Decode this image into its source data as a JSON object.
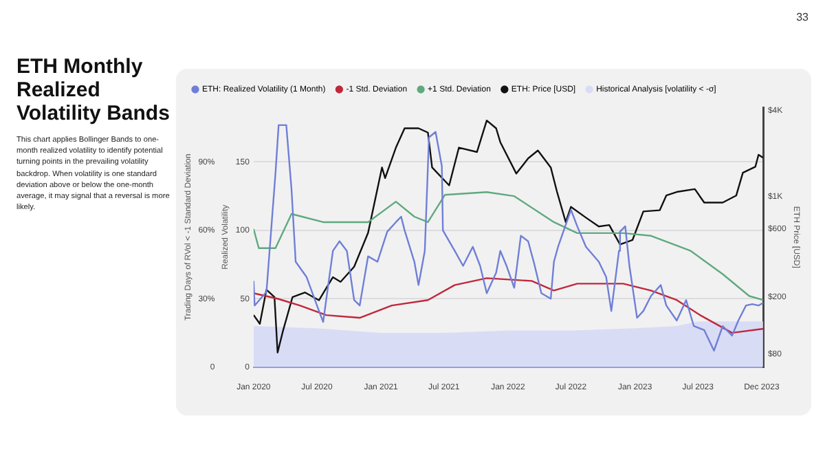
{
  "chart_data": {
    "type": "line",
    "title": "ETH Monthly Realized Volatility Bands",
    "subtitle": "This chart applies Bollinger Bands to one-month realized volatility to identify potential turning points in the prevailing volatility backdrop. When volatility is one standard deviation above or below the one-month average, it may signal that a reversal is more likely.",
    "annotations": [
      "33"
    ],
    "ylabel": "Realized Volatility",
    "y2label": "ETH Price [USD]",
    "y3label": "Trading Days of RVol < -1 Standard Deviation",
    "xlim": [
      "2020-01-01",
      "2024-01-06"
    ],
    "xticks": [
      {
        "value": "2020-01-01",
        "label": "Jan 2020"
      },
      {
        "value": "2020-07-01",
        "label": "Jul 2020"
      },
      {
        "value": "2021-01-01",
        "label": "Jan 2021"
      },
      {
        "value": "2021-07-01",
        "label": "Jul 2021"
      },
      {
        "value": "2022-01-01",
        "label": "Jan 2022"
      },
      {
        "value": "2022-07-01",
        "label": "Jul 2022"
      },
      {
        "value": "2023-01-01",
        "label": "Jan 2023"
      },
      {
        "value": "2023-07-01",
        "label": "Jul 2023"
      },
      {
        "value": "2023-12-31",
        "label": "Dec 2023"
      }
    ],
    "ylim": [
      0,
      190
    ],
    "yticks": [
      0,
      50,
      100,
      150
    ],
    "y3lim": [
      0,
      114
    ],
    "y3ticks": [
      0,
      {
        "value": 30,
        "label": "30%"
      },
      {
        "value": 60,
        "label": "60%"
      },
      {
        "value": 90,
        "label": "90%"
      }
    ],
    "y2lim": [
      65,
      4200
    ],
    "y2ticks": [
      {
        "value": 80,
        "label": "$80"
      },
      {
        "value": 200,
        "label": "$200"
      },
      {
        "value": 600,
        "label": "$600"
      },
      {
        "value": 1000,
        "label": "$1K"
      },
      {
        "value": 4000,
        "label": "$4K"
      }
    ],
    "log": "y2",
    "grid": "y",
    "legend": "top left",
    "marker": "none",
    "line_style": "solid",
    "series": [
      {
        "name": "ETH: Realized Volatility (1 Month)",
        "color": "#6f7fd6",
        "x": [
          "2020-01-01",
          "2020-01-04",
          "2020-02-07",
          "2020-03-04",
          "2020-03-13",
          "2020-04-04",
          "2020-04-19",
          "2020-05-01",
          "2020-06-01",
          "2020-07-07",
          "2020-07-19",
          "2020-08-16",
          "2020-09-04",
          "2020-09-25",
          "2020-10-16",
          "2020-11-01",
          "2020-11-25",
          "2020-12-22",
          "2021-01-19",
          "2021-02-13",
          "2021-02-28",
          "2021-03-10",
          "2021-04-07",
          "2021-04-19",
          "2021-05-07",
          "2021-05-19",
          "2021-06-07",
          "2021-06-25",
          "2021-06-28",
          "2021-08-01",
          "2021-08-25",
          "2021-09-22",
          "2021-10-13",
          "2021-11-01",
          "2021-11-28",
          "2021-12-10",
          "2021-12-28",
          "2022-01-19",
          "2022-02-07",
          "2022-02-28",
          "2022-03-16",
          "2022-04-07",
          "2022-05-04",
          "2022-05-13",
          "2022-05-25",
          "2022-07-01",
          "2022-07-19",
          "2022-08-13",
          "2022-09-19",
          "2022-10-10",
          "2022-10-25",
          "2022-11-16",
          "2022-11-19",
          "2022-12-04",
          "2022-12-16",
          "2023-01-07",
          "2023-01-25",
          "2023-02-16",
          "2023-03-16",
          "2023-04-01",
          "2023-05-01",
          "2023-05-28",
          "2023-06-19",
          "2023-07-19",
          "2023-08-16",
          "2023-09-10",
          "2023-10-07",
          "2023-10-25",
          "2023-11-16",
          "2023-12-04",
          "2023-12-22",
          "2024-01-04"
        ],
        "values": [
          63,
          45,
          55,
          142,
          177,
          177,
          130,
          77,
          66,
          41,
          33,
          85,
          92,
          85,
          49,
          45,
          81,
          77,
          99,
          106,
          110,
          100,
          77,
          60,
          85,
          168,
          172,
          147,
          100,
          85,
          74,
          88,
          74,
          54,
          69,
          85,
          74,
          58,
          96,
          92,
          77,
          54,
          50,
          77,
          88,
          115,
          103,
          88,
          77,
          66,
          41,
          85,
          99,
          103,
          74,
          36,
          41,
          52,
          60,
          45,
          34,
          49,
          30,
          27,
          12,
          30,
          23,
          34,
          45,
          46,
          45,
          47
        ]
      },
      {
        "name": "-1 Std. Deviation",
        "color": "#c0283a",
        "x": [
          "2020-01-01",
          "2020-03-10",
          "2020-05-13",
          "2020-07-28",
          "2020-11-01",
          "2021-02-01",
          "2021-05-16",
          "2021-08-01",
          "2021-11-01",
          "2022-03-10",
          "2022-05-13",
          "2022-07-19",
          "2022-11-28",
          "2023-02-16",
          "2023-05-01",
          "2023-07-07",
          "2023-10-07",
          "2024-01-04"
        ],
        "values": [
          54,
          50,
          45,
          38,
          36,
          45,
          49,
          60,
          65,
          63,
          56,
          61,
          61,
          56,
          49,
          38,
          25,
          28
        ]
      },
      {
        "name": "+1 Std. Deviation",
        "color": "#5fa97e",
        "x": [
          "2020-01-01",
          "2020-01-16",
          "2020-03-04",
          "2020-04-19",
          "2020-07-19",
          "2020-11-25",
          "2021-02-13",
          "2021-04-07",
          "2021-05-16",
          "2021-07-04",
          "2021-11-01",
          "2022-01-19",
          "2022-05-13",
          "2022-07-19",
          "2022-11-28",
          "2023-02-16",
          "2023-06-10",
          "2023-09-10",
          "2023-11-25",
          "2024-01-04"
        ],
        "values": [
          101,
          87,
          87,
          112,
          106,
          106,
          121,
          110,
          106,
          126,
          128,
          125,
          106,
          98,
          98,
          96,
          85,
          68,
          52,
          49
        ]
      },
      {
        "name": "ETH: Price [USD]",
        "color": "#111111",
        "axis": "y2",
        "x": [
          "2020-01-01",
          "2020-01-19",
          "2020-02-07",
          "2020-03-01",
          "2020-03-10",
          "2020-03-25",
          "2020-04-22",
          "2020-05-28",
          "2020-07-07",
          "2020-08-16",
          "2020-09-07",
          "2020-10-16",
          "2020-11-25",
          "2021-01-04",
          "2021-01-13",
          "2021-02-13",
          "2021-03-10",
          "2021-04-19",
          "2021-05-16",
          "2021-05-28",
          "2021-07-16",
          "2021-08-13",
          "2021-10-04",
          "2021-11-01",
          "2021-11-28",
          "2021-12-10",
          "2022-01-25",
          "2022-02-28",
          "2022-03-28",
          "2022-05-04",
          "2022-05-22",
          "2022-06-16",
          "2022-07-01",
          "2022-08-13",
          "2022-09-19",
          "2022-10-19",
          "2022-11-19",
          "2022-12-25",
          "2023-01-25",
          "2023-03-13",
          "2023-04-01",
          "2023-05-01",
          "2023-06-22",
          "2023-07-19",
          "2023-09-10",
          "2023-10-19",
          "2023-11-07",
          "2023-12-13",
          "2023-12-22",
          "2024-01-04"
        ],
        "values": [
          150,
          130,
          225,
          200,
          82,
          115,
          200,
          215,
          190,
          275,
          255,
          325,
          560,
          1600,
          1350,
          2200,
          3000,
          3000,
          2800,
          1600,
          1200,
          2200,
          2050,
          3400,
          3000,
          2400,
          1450,
          1850,
          2100,
          1600,
          1080,
          665,
          850,
          715,
          620,
          635,
          465,
          500,
          790,
          805,
          1020,
          1080,
          1130,
          910,
          910,
          1020,
          1470,
          1620,
          1960,
          1870
        ]
      },
      {
        "name": "Historical Analysis [volatility < -σ]",
        "color": "#d9dcf5",
        "type": "area",
        "axis": "y3",
        "x": [
          "2020-01-01",
          "2020-07-01",
          "2021-01-01",
          "2021-07-01",
          "2022-01-01",
          "2022-07-01",
          "2023-01-01",
          "2023-05-01",
          "2023-07-01",
          "2024-01-04"
        ],
        "values": [
          18,
          17,
          15,
          15,
          16,
          16,
          17,
          18,
          20,
          20
        ]
      }
    ]
  }
}
